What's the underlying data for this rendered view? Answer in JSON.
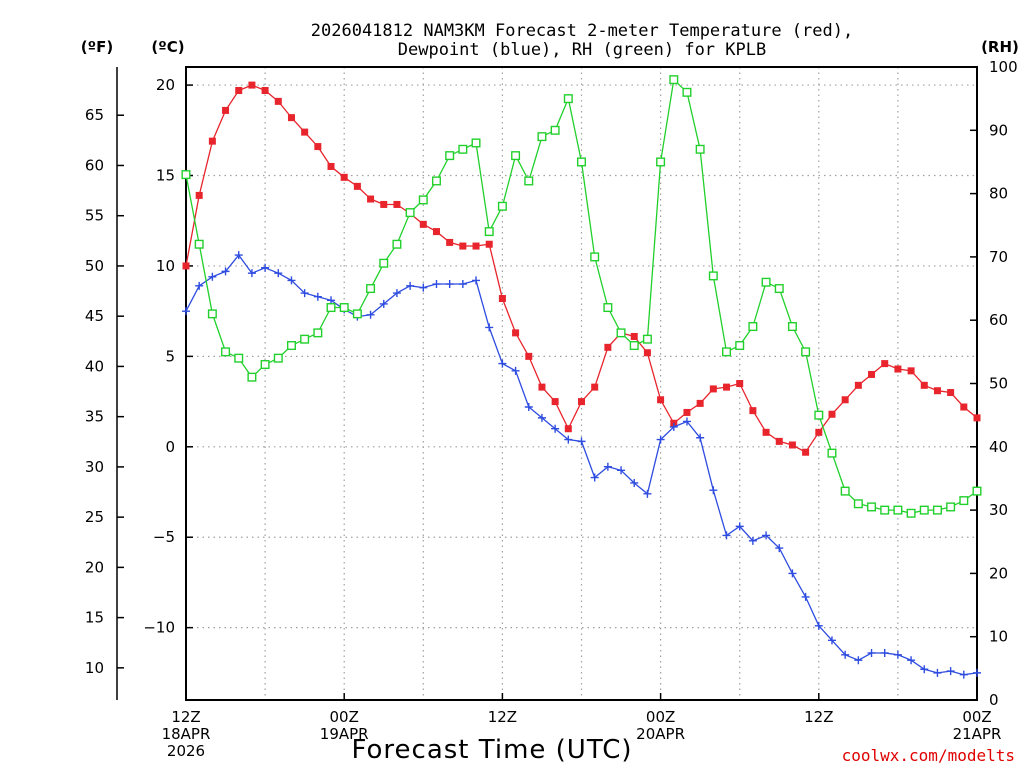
{
  "chart_data": {
    "type": "line",
    "title_line1": "2026041812 NAM3KM Forecast 2-meter Temperature (red),",
    "title_line2": "Dewpoint (blue), RH (green) for KPLB",
    "left_outer_unit": "(ºF)",
    "left_inner_unit": "(ºC)",
    "right_unit": "(RH)",
    "xlabel": "Forecast Time (UTC)",
    "credit": "coolwx.com/modelts",
    "x_range_hours": [
      0,
      60
    ],
    "celsius_range": [
      -14,
      21
    ],
    "rh_range": [
      0,
      100
    ],
    "celsius_ticks": [
      "20",
      "15",
      "10",
      "5",
      "0",
      "−5",
      "−10"
    ],
    "celsius_tick_values": [
      20,
      15,
      10,
      5,
      0,
      -5,
      -10
    ],
    "fahrenheit_ticks": [
      "65",
      "60",
      "55",
      "50",
      "45",
      "40",
      "35",
      "30",
      "25",
      "20",
      "15",
      "10"
    ],
    "fahrenheit_tick_values": [
      65,
      60,
      55,
      50,
      45,
      40,
      35,
      30,
      25,
      20,
      15,
      10
    ],
    "rh_ticks": [
      "100",
      "90",
      "80",
      "70",
      "60",
      "50",
      "40",
      "30",
      "20",
      "10",
      "0"
    ],
    "rh_tick_values": [
      100,
      90,
      80,
      70,
      60,
      50,
      40,
      30,
      20,
      10,
      0
    ],
    "x_ticks": [
      {
        "hour": 0,
        "l1": "12Z",
        "l2": "18APR",
        "l3": "2026"
      },
      {
        "hour": 12,
        "l1": "00Z",
        "l2": "19APR",
        "l3": ""
      },
      {
        "hour": 24,
        "l1": "12Z",
        "l2": "",
        "l3": ""
      },
      {
        "hour": 36,
        "l1": "00Z",
        "l2": "20APR",
        "l3": ""
      },
      {
        "hour": 48,
        "l1": "12Z",
        "l2": "",
        "l3": ""
      },
      {
        "hour": 60,
        "l1": "00Z",
        "l2": "21APR",
        "l3": ""
      }
    ],
    "series": [
      {
        "name": "2-meter Temperature",
        "unit": "C",
        "color": "#e8242c",
        "marker": "filled-square",
        "hours": [
          0,
          1,
          2,
          3,
          4,
          5,
          6,
          7,
          8,
          9,
          10,
          11,
          12,
          13,
          14,
          15,
          16,
          17,
          18,
          19,
          20,
          21,
          22,
          23,
          24,
          25,
          26,
          27,
          28,
          29,
          30,
          31,
          32,
          33,
          34,
          35,
          36,
          37,
          38,
          39,
          40,
          41,
          42,
          43,
          44,
          45,
          46,
          47,
          48,
          49,
          50,
          51,
          52,
          53,
          54,
          55,
          56,
          57,
          58,
          59,
          60
        ],
        "values": [
          10.0,
          13.9,
          16.9,
          18.6,
          19.7,
          20.0,
          19.7,
          19.1,
          18.2,
          17.4,
          16.6,
          15.5,
          14.9,
          14.4,
          13.7,
          13.4,
          13.4,
          12.9,
          12.3,
          11.9,
          11.3,
          11.1,
          11.1,
          11.2,
          8.2,
          6.3,
          5.0,
          3.3,
          2.5,
          1.0,
          2.5,
          3.3,
          5.5,
          6.3,
          6.1,
          5.2,
          2.6,
          1.3,
          1.9,
          2.4,
          3.2,
          3.3,
          3.5,
          2.0,
          0.8,
          0.3,
          0.1,
          -0.3,
          0.8,
          1.8,
          2.6,
          3.4,
          4.0,
          4.6,
          4.3,
          4.2,
          3.4,
          3.1,
          3.0,
          2.2,
          1.6
        ]
      },
      {
        "name": "Dewpoint",
        "unit": "C",
        "color": "#2e4ce0",
        "marker": "plus",
        "hours": [
          0,
          1,
          2,
          3,
          4,
          5,
          6,
          7,
          8,
          9,
          10,
          11,
          12,
          13,
          14,
          15,
          16,
          17,
          18,
          19,
          20,
          21,
          22,
          23,
          24,
          25,
          26,
          27,
          28,
          29,
          30,
          31,
          32,
          33,
          34,
          35,
          36,
          37,
          38,
          39,
          40,
          41,
          42,
          43,
          44,
          45,
          46,
          47,
          48,
          49,
          50,
          51,
          52,
          53,
          54,
          55,
          56,
          57,
          58,
          59,
          60
        ],
        "values": [
          7.5,
          8.9,
          9.4,
          9.7,
          10.6,
          9.6,
          9.9,
          9.6,
          9.2,
          8.5,
          8.3,
          8.1,
          7.6,
          7.2,
          7.3,
          7.9,
          8.5,
          8.9,
          8.8,
          9.0,
          9.0,
          9.0,
          9.2,
          6.6,
          4.6,
          4.2,
          2.2,
          1.6,
          1.0,
          0.4,
          0.3,
          -1.7,
          -1.1,
          -1.3,
          -2.0,
          -2.6,
          0.4,
          1.1,
          1.4,
          0.5,
          -2.4,
          -4.9,
          -4.4,
          -5.2,
          -4.9,
          -5.6,
          -7.0,
          -8.3,
          -9.9,
          -10.7,
          -11.5,
          -11.8,
          -11.4,
          -11.4,
          -11.5,
          -11.8,
          -12.3,
          -12.5,
          -12.4,
          -12.6,
          -12.5
        ]
      },
      {
        "name": "RH",
        "unit": "%",
        "color": "#22d02c",
        "marker": "open-square",
        "hours": [
          0,
          1,
          2,
          3,
          4,
          5,
          6,
          7,
          8,
          9,
          10,
          11,
          12,
          13,
          14,
          15,
          16,
          17,
          18,
          19,
          20,
          21,
          22,
          23,
          24,
          25,
          26,
          27,
          28,
          29,
          30,
          31,
          32,
          33,
          34,
          35,
          36,
          37,
          38,
          39,
          40,
          41,
          42,
          43,
          44,
          45,
          46,
          47,
          48,
          49,
          50,
          51,
          52,
          53,
          54,
          55,
          56,
          57,
          58,
          59,
          60
        ],
        "values": [
          83,
          72,
          61,
          55,
          54,
          51,
          53,
          54,
          56,
          57,
          58,
          62,
          62,
          61,
          65,
          69,
          72,
          77,
          79,
          82,
          86,
          87,
          88,
          74,
          78,
          86,
          82,
          89,
          90,
          95,
          85,
          70,
          62,
          58,
          56,
          57,
          85,
          98,
          96,
          87,
          67,
          55,
          56,
          59,
          66,
          65,
          59,
          55,
          45,
          39,
          33,
          31,
          30.5,
          30,
          30,
          29.5,
          30,
          30,
          30.5,
          31.5,
          33
        ]
      }
    ]
  }
}
